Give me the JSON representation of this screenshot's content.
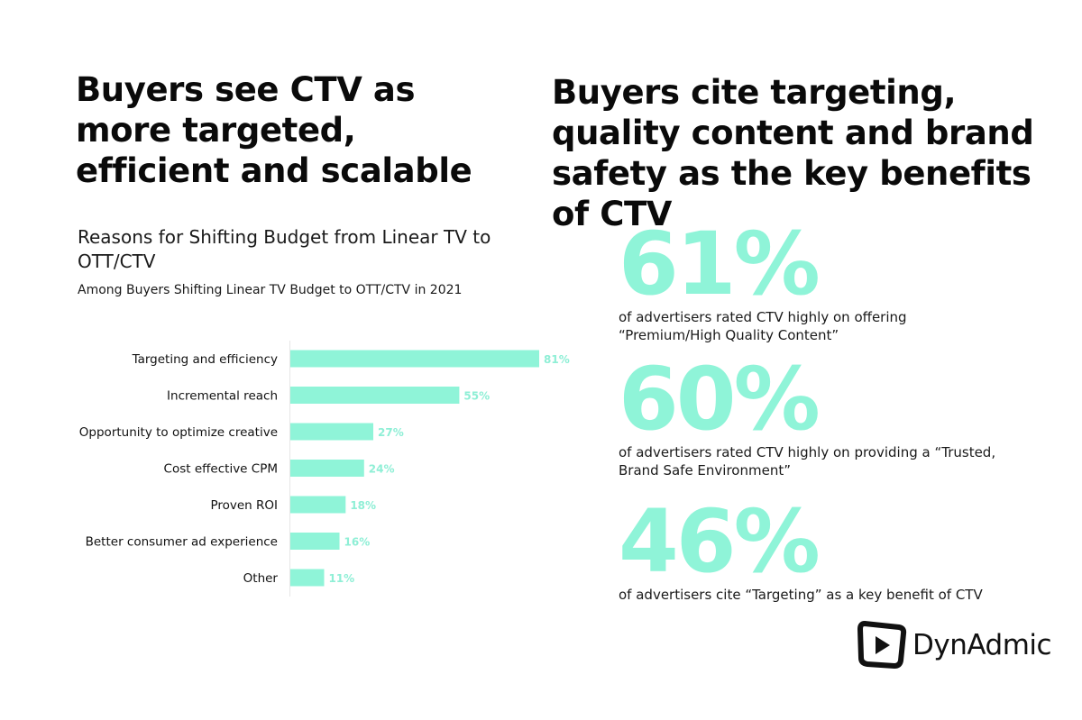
{
  "left_headline": "Buyers see CTV as more targeted, efficient and scalable",
  "right_headline": "Buyers cite targeting, quality content and brand safety as the key benefits of CTV",
  "stats": [
    {
      "value": "61%",
      "description": "of advertisers rated CTV highly on offering “Premium/High Quality Content”"
    },
    {
      "value": "60%",
      "description": "of advertisers rated CTV highly on providing a “Trusted, Brand Safe Environment”"
    },
    {
      "value": "46%",
      "description": "of advertisers cite “Targeting” as a key benefit of CTV"
    }
  ],
  "logo": {
    "text": "DynAdmic",
    "icon": "play-button-icon"
  },
  "colors": {
    "bar": "#8ff4d8",
    "value_label": "#8fefd6",
    "stat": "#8ff4d8"
  },
  "chart_data": {
    "type": "bar",
    "orientation": "horizontal",
    "title": "Reasons for Shifting Budget from Linear TV to OTT/CTV",
    "subtitle": "Among Buyers Shifting Linear TV Budget to OTT/CTV in 2021",
    "categories": [
      "Targeting and efficiency",
      "Incremental reach",
      "Opportunity to optimize creative",
      "Cost effective CPM",
      "Proven ROI",
      "Better consumer ad experience",
      "Other"
    ],
    "values": [
      81,
      55,
      27,
      24,
      18,
      16,
      11
    ],
    "value_labels": [
      "81%",
      "55%",
      "27%",
      "24%",
      "18%",
      "16%",
      "11%"
    ],
    "unit": "%",
    "xlim": [
      0,
      100
    ],
    "grid": false,
    "legend": "none"
  }
}
